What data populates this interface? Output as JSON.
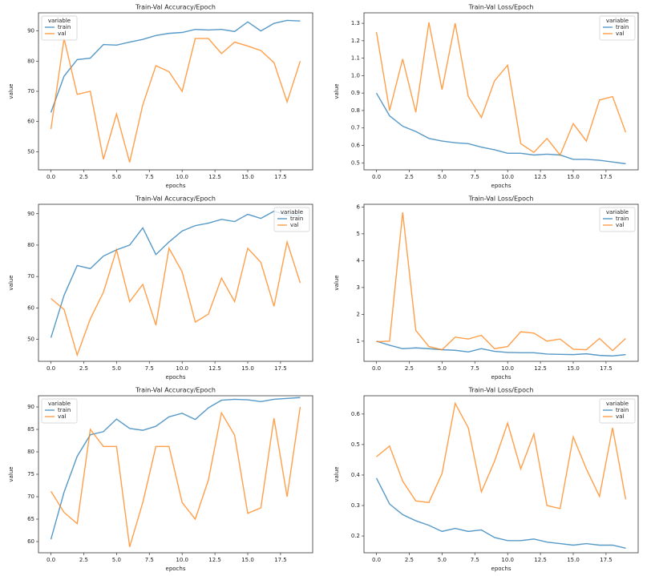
{
  "chart_data": [
    {
      "type": "line",
      "title": "Train-Val Accuracy/Epoch",
      "xlabel": "epochs",
      "ylabel": "value",
      "legend_title": "variable",
      "legend": "upper left",
      "x": [
        0,
        1,
        2,
        3,
        4,
        5,
        6,
        7,
        8,
        9,
        10,
        11,
        12,
        13,
        14,
        15,
        16,
        17,
        18,
        19
      ],
      "xlim": [
        -0.95,
        19.95
      ],
      "xticks": [
        {
          "value": 0,
          "label": "0.0"
        },
        2.5,
        {
          "value": 5,
          "label": "5.0"
        },
        7.5,
        {
          "value": 10,
          "label": "10.0"
        },
        12.5,
        {
          "value": 15,
          "label": "15.0"
        },
        17.5
      ],
      "ylim": [
        44,
        96
      ],
      "yticks": [
        50,
        60,
        70,
        80,
        90
      ],
      "series": [
        {
          "name": "train",
          "color": "#1f77b4",
          "values": [
            63,
            75,
            80.5,
            81,
            85.5,
            85.3,
            86.3,
            87.2,
            88.5,
            89.2,
            89.5,
            90.5,
            90.3,
            90.5,
            89.8,
            93,
            90,
            92.5,
            93.5,
            93.3
          ]
        },
        {
          "name": "val",
          "color": "#ff7f0e",
          "values": [
            57.5,
            87.5,
            69,
            70,
            47.5,
            62.5,
            46.5,
            65.5,
            78.5,
            76.5,
            70,
            87.5,
            87.5,
            82.5,
            86.3,
            85,
            83.5,
            79.5,
            66.5,
            80
          ]
        }
      ]
    },
    {
      "type": "line",
      "title": "Train-Val Loss/Epoch",
      "xlabel": "epochs",
      "ylabel": "value",
      "legend_title": "variable",
      "legend": "upper right",
      "x": [
        0,
        1,
        2,
        3,
        4,
        5,
        6,
        7,
        8,
        9,
        10,
        11,
        12,
        13,
        14,
        15,
        16,
        17,
        18,
        19
      ],
      "xlim": [
        -0.95,
        19.95
      ],
      "xticks": [
        {
          "value": 0,
          "label": "0.0"
        },
        2.5,
        {
          "value": 5,
          "label": "5.0"
        },
        7.5,
        {
          "value": 10,
          "label": "10.0"
        },
        12.5,
        {
          "value": 15,
          "label": "15.0"
        },
        17.5
      ],
      "ylim": [
        0.46,
        1.36
      ],
      "yticks": [
        0.5,
        0.6,
        0.7,
        0.8,
        0.9,
        {
          "value": 1,
          "label": "1.0"
        },
        1.1,
        1.2,
        1.3
      ],
      "series": [
        {
          "name": "train",
          "color": "#1f77b4",
          "values": [
            0.9,
            0.77,
            0.71,
            0.68,
            0.64,
            0.625,
            0.615,
            0.61,
            0.59,
            0.575,
            0.555,
            0.555,
            0.545,
            0.55,
            0.545,
            0.52,
            0.52,
            0.515,
            0.505,
            0.495
          ]
        },
        {
          "name": "val",
          "color": "#ff7f0e",
          "values": [
            1.25,
            0.8,
            1.095,
            0.79,
            1.305,
            0.92,
            1.3,
            0.88,
            0.76,
            0.97,
            1.06,
            0.61,
            0.56,
            0.64,
            0.545,
            0.725,
            0.625,
            0.86,
            0.88,
            0.675
          ]
        }
      ]
    },
    {
      "type": "line",
      "title": "Train-Val Accuracy/Epoch",
      "xlabel": "epochs",
      "ylabel": "value",
      "legend_title": "variable",
      "legend": "upper right",
      "x": [
        0,
        1,
        2,
        3,
        4,
        5,
        6,
        7,
        8,
        9,
        10,
        11,
        12,
        13,
        14,
        15,
        16,
        17,
        18,
        19
      ],
      "xlim": [
        -0.95,
        19.95
      ],
      "xticks": [
        {
          "value": 0,
          "label": "0.0"
        },
        2.5,
        {
          "value": 5,
          "label": "5.0"
        },
        7.5,
        {
          "value": 10,
          "label": "10.0"
        },
        12.5,
        {
          "value": 15,
          "label": "15.0"
        },
        17.5
      ],
      "ylim": [
        43,
        93
      ],
      "yticks": [
        50,
        60,
        70,
        80,
        90
      ],
      "series": [
        {
          "name": "train",
          "color": "#1f77b4",
          "values": [
            50.5,
            64,
            73.5,
            72.5,
            76.5,
            78.5,
            80,
            85.5,
            77,
            81,
            84.5,
            86.2,
            87,
            88.2,
            87.5,
            89.8,
            88.5,
            90.8,
            89.5,
            89.5
          ]
        },
        {
          "name": "val",
          "color": "#ff7f0e",
          "values": [
            63,
            59.5,
            45,
            56.5,
            65,
            78.5,
            62,
            67.5,
            54.5,
            79,
            71.5,
            55.5,
            58,
            69.5,
            62,
            79,
            74.5,
            60.5,
            81,
            68
          ]
        }
      ]
    },
    {
      "type": "line",
      "title": "Train-Val Loss/Epoch",
      "xlabel": "epochs",
      "ylabel": "value",
      "legend_title": "variable",
      "legend": "upper right",
      "x": [
        0,
        1,
        2,
        3,
        4,
        5,
        6,
        7,
        8,
        9,
        10,
        11,
        12,
        13,
        14,
        15,
        16,
        17,
        18,
        19
      ],
      "xlim": [
        -0.95,
        19.95
      ],
      "xticks": [
        {
          "value": 0,
          "label": "0.0"
        },
        2.5,
        {
          "value": 5,
          "label": "5.0"
        },
        7.5,
        {
          "value": 10,
          "label": "10.0"
        },
        12.5,
        {
          "value": 15,
          "label": "15.0"
        },
        17.5
      ],
      "ylim": [
        0.25,
        6.1
      ],
      "yticks": [
        1,
        2,
        3,
        4,
        5,
        6
      ],
      "series": [
        {
          "name": "train",
          "color": "#1f77b4",
          "values": [
            1.0,
            0.85,
            0.72,
            0.75,
            0.72,
            0.68,
            0.66,
            0.6,
            0.72,
            0.62,
            0.58,
            0.57,
            0.57,
            0.52,
            0.51,
            0.5,
            0.53,
            0.47,
            0.45,
            0.5
          ]
        },
        {
          "name": "val",
          "color": "#ff7f0e",
          "values": [
            0.98,
            1.0,
            5.8,
            1.4,
            0.8,
            0.68,
            1.15,
            1.08,
            1.22,
            0.72,
            0.8,
            1.35,
            1.3,
            1.0,
            1.08,
            0.7,
            0.68,
            1.1,
            0.65,
            1.1
          ]
        }
      ]
    },
    {
      "type": "line",
      "title": "Train-Val Accuracy/Epoch",
      "xlabel": "epochs",
      "ylabel": "value",
      "legend_title": "variable",
      "legend": "upper left",
      "x": [
        0,
        1,
        2,
        3,
        4,
        5,
        6,
        7,
        8,
        9,
        10,
        11,
        12,
        13,
        14,
        15,
        16,
        17,
        18,
        19
      ],
      "xlim": [
        -0.95,
        19.95
      ],
      "xticks": [
        {
          "value": 0,
          "label": "0.0"
        },
        2.5,
        {
          "value": 5,
          "label": "5.0"
        },
        7.5,
        {
          "value": 10,
          "label": "10.0"
        },
        12.5,
        {
          "value": 15,
          "label": "15.0"
        },
        17.5
      ],
      "ylim": [
        57.5,
        92.5
      ],
      "yticks": [
        60,
        65,
        70,
        75,
        80,
        85,
        90
      ],
      "series": [
        {
          "name": "train",
          "color": "#1f77b4",
          "values": [
            60.5,
            71,
            79,
            83.8,
            84.5,
            87.3,
            85.2,
            84.8,
            85.7,
            87.8,
            88.6,
            87.2,
            89.8,
            91.5,
            91.7,
            91.6,
            91.2,
            91.7,
            91.9,
            92.1
          ]
        },
        {
          "name": "val",
          "color": "#ff7f0e",
          "values": [
            71.2,
            66.5,
            64,
            85,
            81.2,
            81.2,
            58.8,
            68.7,
            81.2,
            81.2,
            68.7,
            65,
            73.7,
            88.7,
            83.7,
            66.3,
            67.5,
            87.5,
            70,
            90
          ]
        }
      ]
    },
    {
      "type": "line",
      "title": "Train-Val Loss/Epoch",
      "xlabel": "epochs",
      "ylabel": "value",
      "legend_title": "variable",
      "legend": "upper right",
      "x": [
        0,
        1,
        2,
        3,
        4,
        5,
        6,
        7,
        8,
        9,
        10,
        11,
        12,
        13,
        14,
        15,
        16,
        17,
        18,
        19
      ],
      "xlim": [
        -0.95,
        19.95
      ],
      "xticks": [
        {
          "value": 0,
          "label": "0.0"
        },
        2.5,
        {
          "value": 5,
          "label": "5.0"
        },
        7.5,
        {
          "value": 10,
          "label": "10.0"
        },
        12.5,
        {
          "value": 15,
          "label": "15.0"
        },
        17.5
      ],
      "ylim": [
        0.145,
        0.66
      ],
      "yticks": [
        0.2,
        0.3,
        0.4,
        0.5,
        0.6
      ],
      "series": [
        {
          "name": "train",
          "color": "#1f77b4",
          "values": [
            0.39,
            0.305,
            0.27,
            0.25,
            0.235,
            0.215,
            0.225,
            0.215,
            0.22,
            0.195,
            0.185,
            0.185,
            0.19,
            0.18,
            0.175,
            0.17,
            0.175,
            0.17,
            0.17,
            0.16
          ]
        },
        {
          "name": "val",
          "color": "#ff7f0e",
          "values": [
            0.46,
            0.495,
            0.38,
            0.315,
            0.31,
            0.405,
            0.635,
            0.555,
            0.345,
            0.445,
            0.57,
            0.42,
            0.535,
            0.3,
            0.29,
            0.525,
            0.42,
            0.33,
            0.555,
            0.32
          ]
        }
      ]
    }
  ]
}
